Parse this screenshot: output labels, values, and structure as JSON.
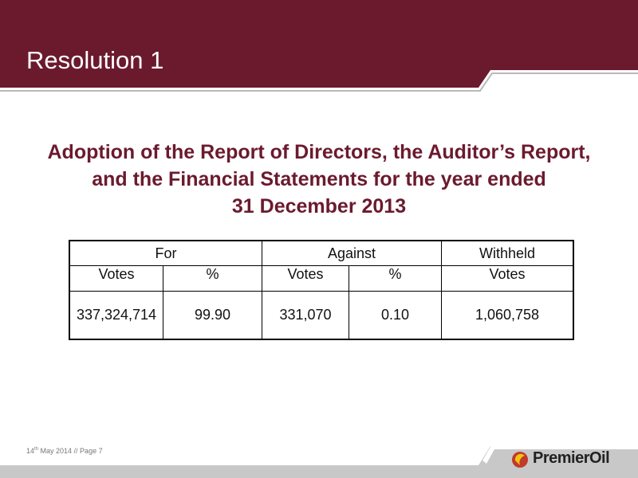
{
  "header": {
    "title": "Resolution 1"
  },
  "heading": {
    "lines": [
      "Adoption of the Report of Directors, the Auditor’s Report,",
      "and the Financial Statements for the year ended",
      "31 December 2013"
    ]
  },
  "table": {
    "groups": [
      "For",
      "Against",
      "Withheld"
    ],
    "subheaders": [
      "Votes",
      "%",
      "Votes",
      "%",
      "Votes"
    ],
    "row": [
      "337,324,714",
      "99.90",
      "331,070",
      "0.10",
      "1,060,758"
    ]
  },
  "footer": {
    "day": "14",
    "suffix": "th",
    "rest": " May 2014 // Page 7"
  },
  "logo": {
    "text": "PremierOil"
  }
}
